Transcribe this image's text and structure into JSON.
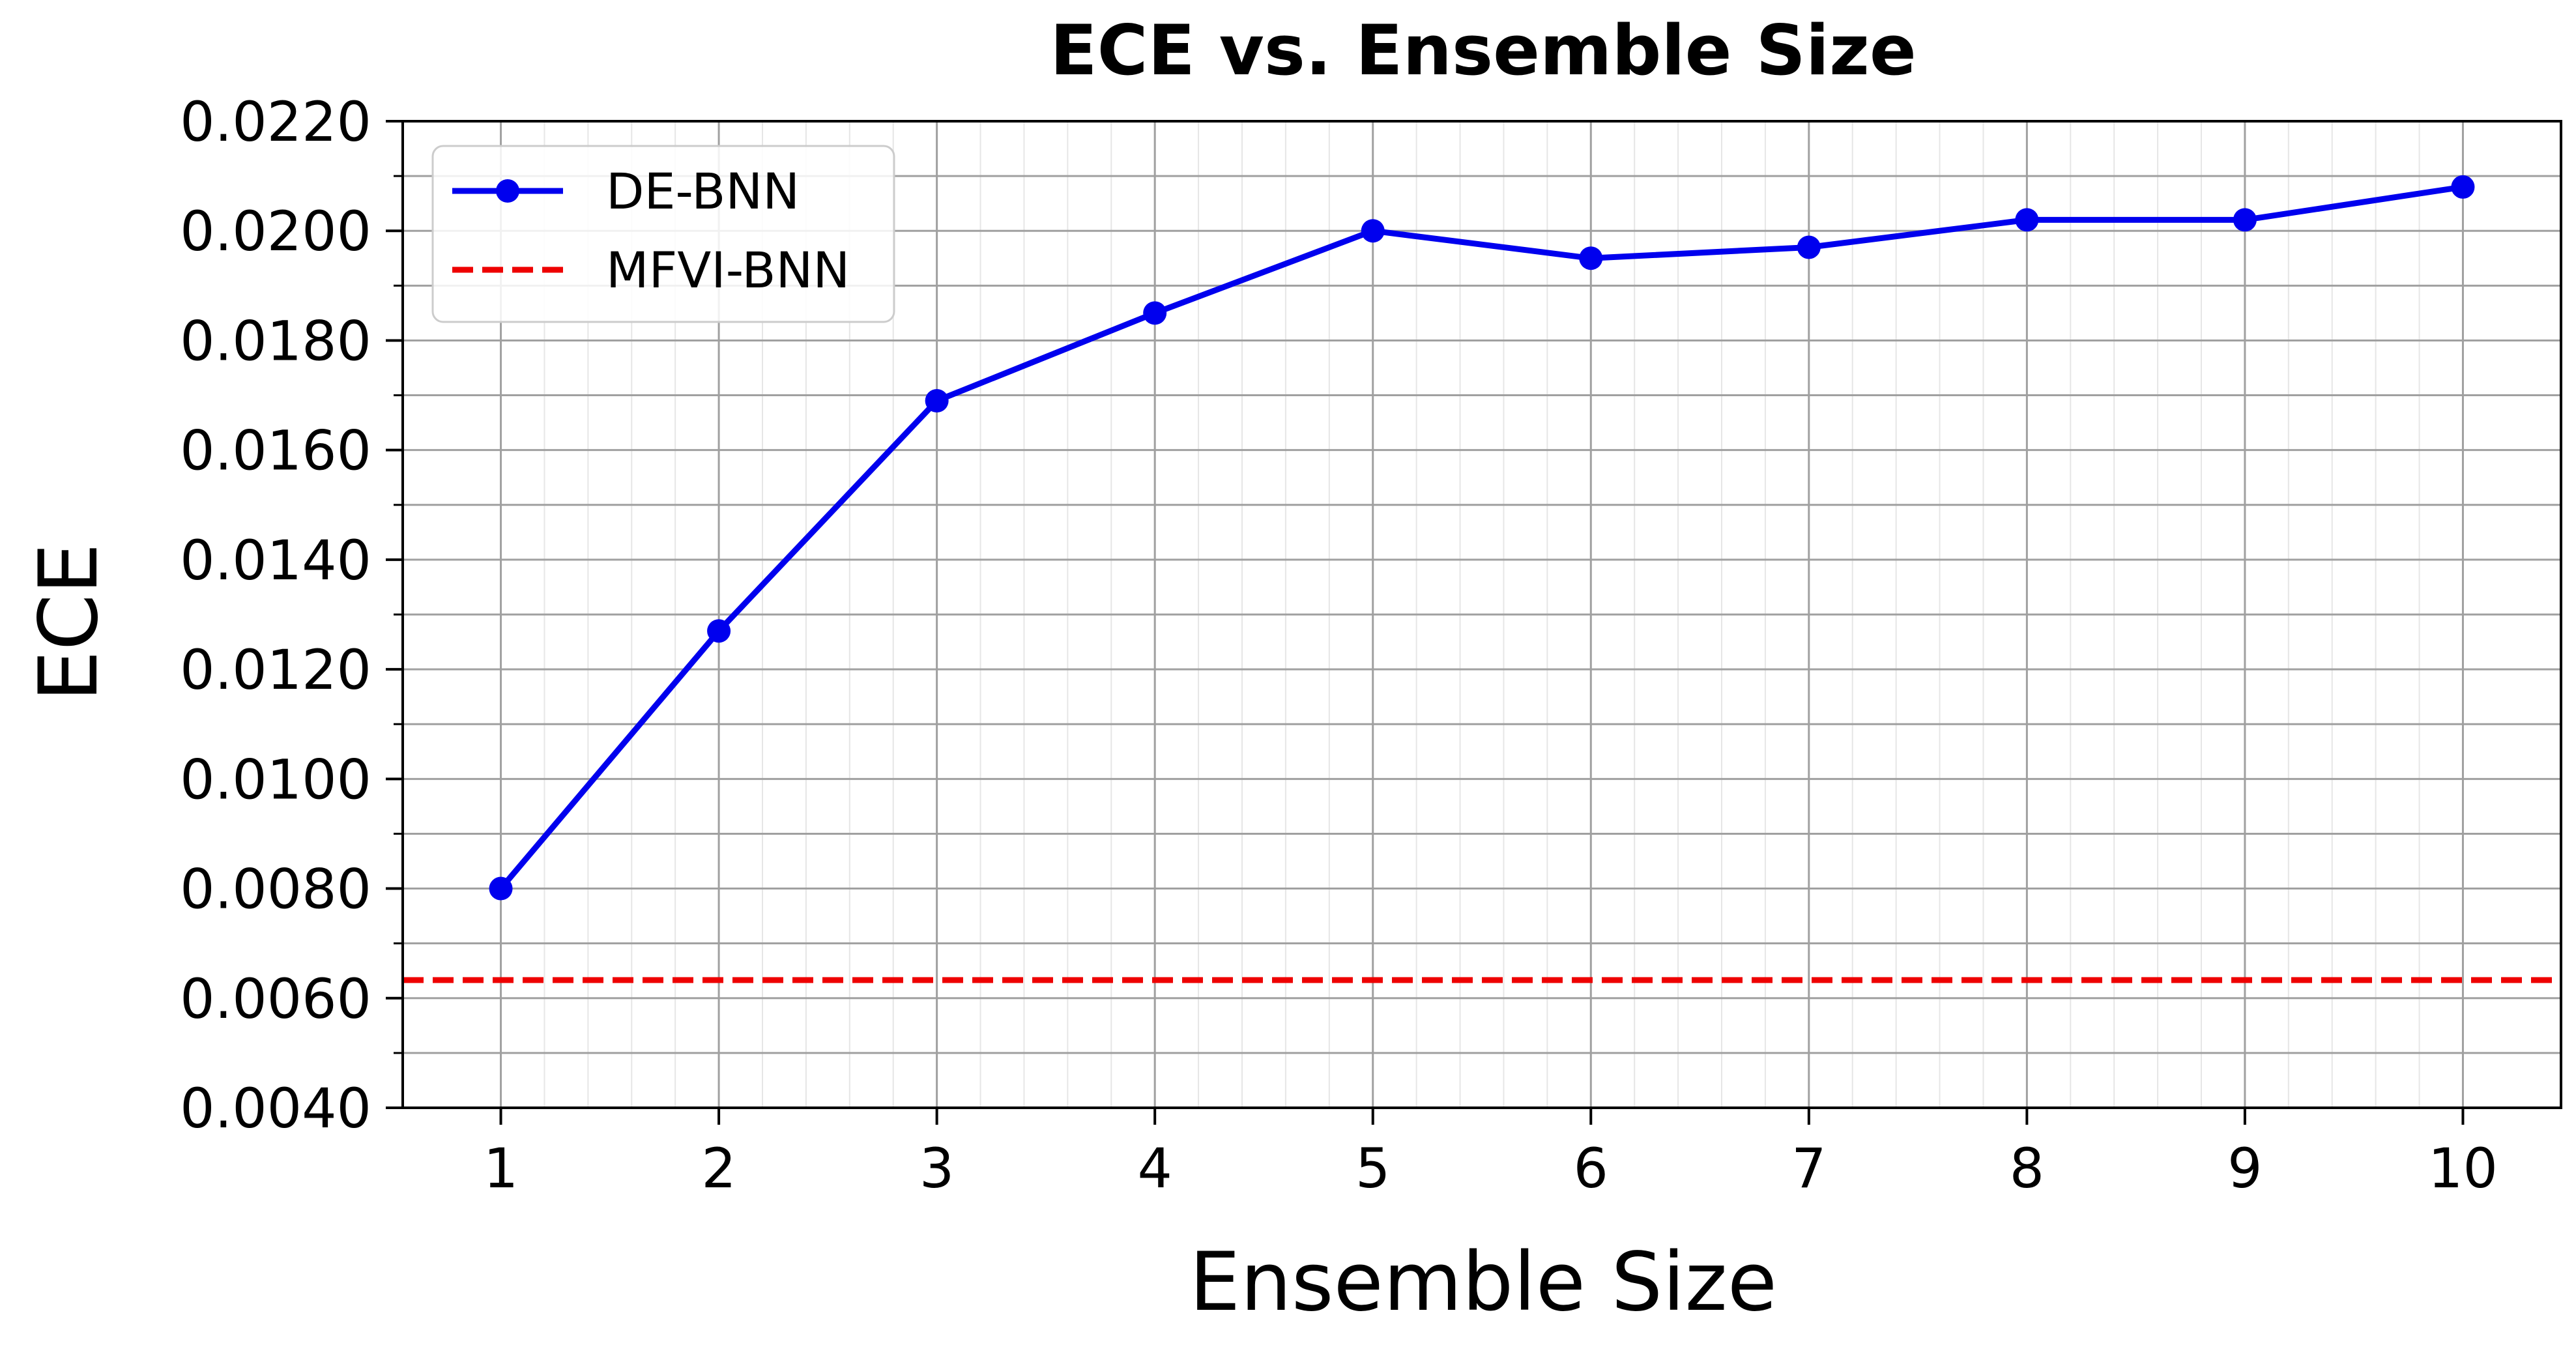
{
  "chart_data": {
    "type": "line",
    "title": "ECE vs. Ensemble Size",
    "xlabel": "Ensemble Size",
    "ylabel": "ECE",
    "x": [
      1,
      2,
      3,
      4,
      5,
      6,
      7,
      8,
      9,
      10
    ],
    "x_tick_labels": [
      "1",
      "2",
      "3",
      "4",
      "5",
      "6",
      "7",
      "8",
      "9",
      "10"
    ],
    "ylim": [
      0.004,
      0.022
    ],
    "y_ticks": [
      0.004,
      0.006,
      0.008,
      0.01,
      0.012,
      0.014,
      0.016,
      0.018,
      0.02,
      0.022
    ],
    "y_tick_labels": [
      "0.0040",
      "0.0060",
      "0.0080",
      "0.0100",
      "0.0120",
      "0.0140",
      "0.0160",
      "0.0180",
      "0.0200",
      "0.0220"
    ],
    "grid": true,
    "minor_grid": true,
    "legend_position": "top-left",
    "series": [
      {
        "name": "DE-BNN",
        "style": "solid line with circle markers",
        "color": "#0000ee",
        "values": [
          0.008,
          0.0127,
          0.0169,
          0.0185,
          0.02,
          0.0195,
          0.0197,
          0.0202,
          0.0202,
          0.0208
        ]
      },
      {
        "name": "MFVI-BNN",
        "style": "dashed horizontal line",
        "color": "#ee0000",
        "value": 0.00633
      }
    ]
  }
}
